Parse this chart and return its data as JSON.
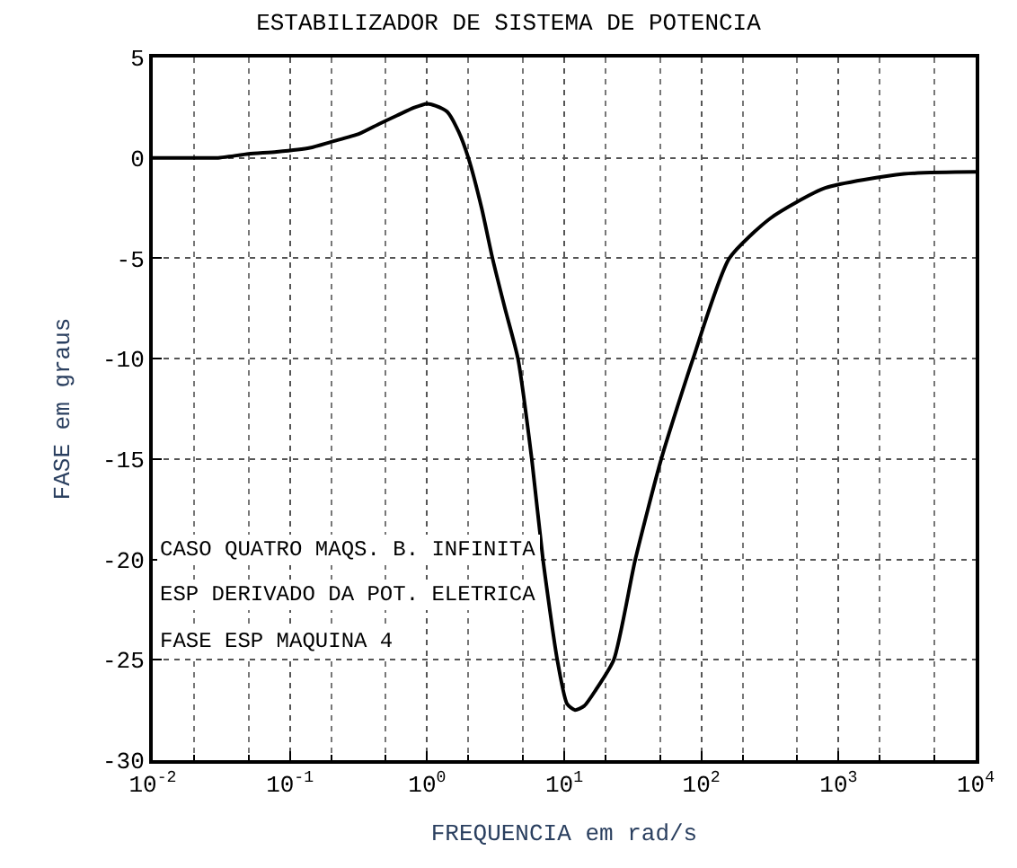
{
  "chart_data": {
    "type": "line",
    "title": "ESTABILIZADOR DE SISTEMA DE POTENCIA",
    "xlabel": "FREQUENCIA em rad/s",
    "ylabel": "FASE em graus",
    "annotations": [
      "CASO QUATRO MAQS. B. INFINITA",
      "ESP DERIVADO DA POT. ELETRICA",
      "FASE ESP MAQUINA 4"
    ],
    "x": [
      0.01,
      0.02,
      0.03,
      0.05,
      0.08,
      0.14,
      0.2,
      0.32,
      0.45,
      0.6,
      0.8,
      1.0,
      1.15,
      1.4,
      1.7,
      2.0,
      2.5,
      3.0,
      3.7,
      4.6,
      5.8,
      7.0,
      8.9,
      10.5,
      12,
      14,
      17,
      23,
      33,
      51,
      87,
      160,
      320,
      800,
      3000,
      10000
    ],
    "series": [
      {
        "color": "#000000",
        "values": [
          0.0,
          0.0,
          0.0,
          0.2,
          0.3,
          0.5,
          0.8,
          1.2,
          1.7,
          2.1,
          2.5,
          2.7,
          2.6,
          2.3,
          1.3,
          0.0,
          -2.5,
          -5.0,
          -7.5,
          -10,
          -15,
          -20,
          -25,
          -27.2,
          -27.5,
          -27.3,
          -26.5,
          -25,
          -20,
          -15,
          -10,
          -5,
          -3,
          -1.5,
          -0.8,
          -0.7
        ]
      }
    ],
    "xlim": [
      0.01,
      10000
    ],
    "ylim": [
      -30,
      5
    ],
    "xticks": [
      {
        "value": 0.01,
        "label": "10$^{-2}$"
      },
      {
        "value": 0.1,
        "label": "10$^{-1}$"
      },
      {
        "value": 1,
        "label": "10$^{0}$"
      },
      {
        "value": 10,
        "label": "10$^{1}$"
      },
      {
        "value": 100,
        "label": "10$^{2}$"
      },
      {
        "value": 1000,
        "label": "10$^{3}$"
      },
      {
        "value": 10000,
        "label": "10$^{4}$"
      }
    ],
    "yticks": [
      5,
      0,
      -5,
      -10,
      -15,
      -20,
      -25,
      -30
    ],
    "log": "x",
    "grid": true,
    "marker": "none",
    "line_style": "solid"
  }
}
